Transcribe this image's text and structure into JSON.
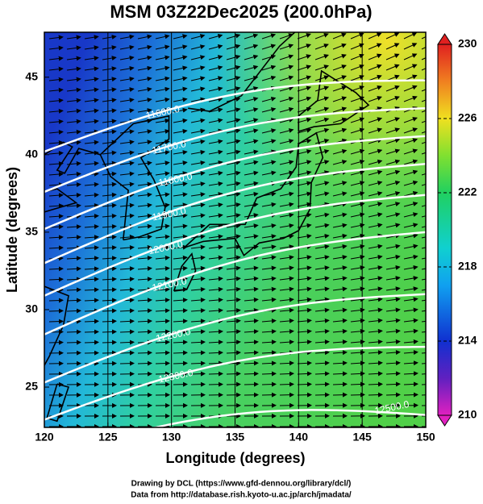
{
  "chart_data": {
    "type": "map",
    "title": "MSM 03Z22Dec2025 (200.0hPa)",
    "xlabel": "Longitude (degrees)",
    "ylabel": "Latitude  (degrees)",
    "xlim": [
      120,
      150
    ],
    "ylim": [
      22.4,
      47.9
    ],
    "xticks": [
      120,
      125,
      130,
      135,
      140,
      145,
      150
    ],
    "yticks": [
      25,
      30,
      35,
      40,
      45
    ],
    "colorbar": {
      "lim": [
        210,
        230
      ],
      "ticks": [
        210,
        214,
        218,
        222,
        226,
        230
      ]
    },
    "contours": [
      {
        "value": 11600,
        "label": "11600.0"
      },
      {
        "value": 11700,
        "label": "11700.0"
      },
      {
        "value": 11800,
        "label": "11800.0"
      },
      {
        "value": 11900,
        "label": "11900.0"
      },
      {
        "value": 12000,
        "label": "12000.0"
      },
      {
        "value": 12100,
        "label": "12100.0"
      },
      {
        "value": 12200,
        "label": "12200.0"
      },
      {
        "value": 12300,
        "label": "12300.0"
      },
      {
        "value": 12500,
        "label": "12500.0"
      }
    ],
    "footer": [
      "Drawing by DCL (https://www.gfd-dennou.org/library/dcl/)",
      "Data from http://database.rish.kyoto-u.ac.jp/arch/jmadata/"
    ]
  }
}
